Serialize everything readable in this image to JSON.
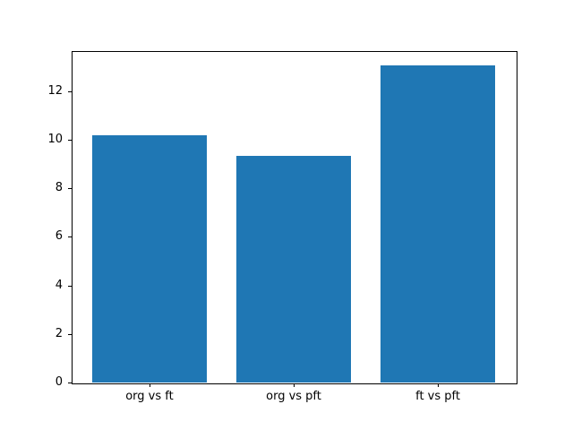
{
  "figure": {
    "background": "#ffffff",
    "spine_color": "#000000",
    "tick_color": "#000000"
  },
  "chart_data": {
    "type": "bar",
    "title": "",
    "xlabel": "",
    "ylabel": "",
    "categories": [
      "org vs ft",
      "org vs pft",
      "ft vs pft"
    ],
    "values": [
      10.2,
      9.35,
      13.05
    ],
    "bar_color": "#1f77b4",
    "bar_width_fraction": 0.8,
    "ylim": [
      0,
      13.65
    ],
    "yticks": [
      0,
      2,
      4,
      6,
      8,
      10,
      12
    ],
    "grid": false,
    "legend": null
  }
}
